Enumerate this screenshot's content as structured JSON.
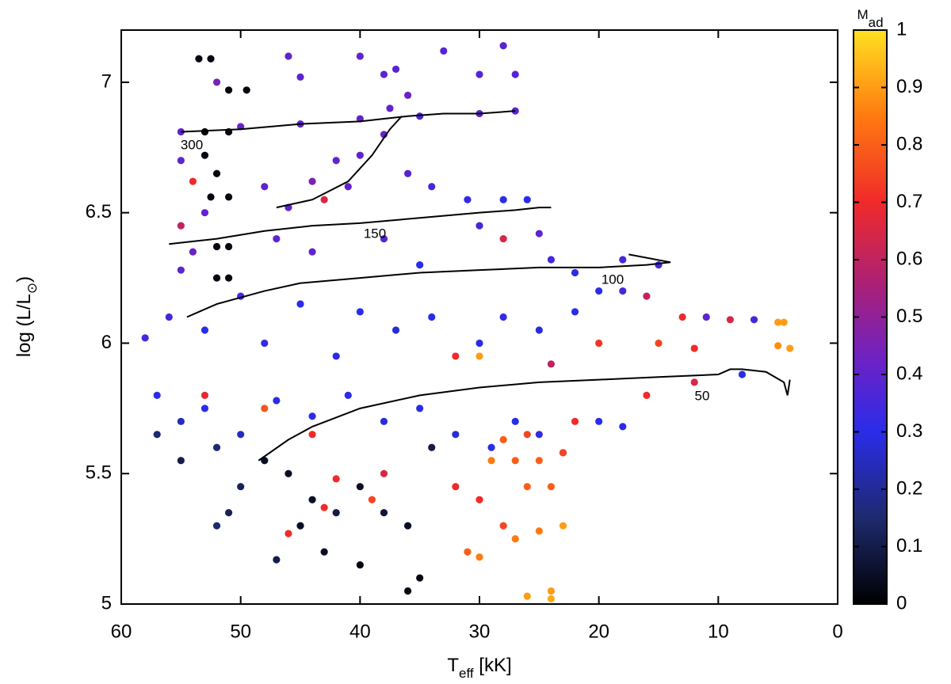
{
  "chart_data": {
    "type": "scatter",
    "xlabel": [
      "T",
      "eff",
      " [kK]"
    ],
    "ylabel": [
      "log (L/L",
      "⊙",
      ")"
    ],
    "clabel": [
      "M",
      "ad"
    ],
    "xlim": [
      60,
      0
    ],
    "xticks": [
      60,
      50,
      40,
      30,
      20,
      10,
      0
    ],
    "ylim": [
      5,
      7.2
    ],
    "yticks": [
      5,
      5.5,
      6,
      6.5,
      7
    ],
    "clim": [
      0,
      1
    ],
    "cticks": [
      0,
      0.1,
      0.2,
      0.3,
      0.4,
      0.5,
      0.6,
      0.7,
      0.8,
      0.9,
      1
    ],
    "colormap": [
      {
        "pos": 0,
        "color": "#000000"
      },
      {
        "pos": 0.15,
        "color": "#1e2a6e"
      },
      {
        "pos": 0.3,
        "color": "#2a2ce8"
      },
      {
        "pos": 0.42,
        "color": "#6a22c8"
      },
      {
        "pos": 0.55,
        "color": "#a8207a"
      },
      {
        "pos": 0.7,
        "color": "#f02a2a"
      },
      {
        "pos": 0.85,
        "color": "#ff7a10"
      },
      {
        "pos": 1,
        "color": "#ffe020"
      }
    ],
    "points": {
      "x": [
        55,
        50,
        45,
        40,
        35,
        30,
        27,
        52,
        45,
        38,
        30,
        27,
        46,
        40,
        33,
        28,
        53.5,
        52.5,
        51,
        49.5,
        53,
        51,
        53,
        52,
        51,
        52.5,
        52,
        51,
        52,
        51,
        55,
        54,
        53,
        55,
        54,
        55,
        48,
        46,
        44,
        42,
        40,
        38,
        43,
        41,
        36,
        34,
        31,
        28,
        26,
        30,
        28,
        25,
        47,
        44,
        38,
        35,
        24,
        22,
        18,
        15,
        37,
        36,
        37.5,
        58,
        56,
        53,
        50,
        48,
        45,
        42,
        40,
        37,
        34,
        32,
        30,
        28,
        25,
        22,
        20,
        18,
        16,
        13,
        11,
        9,
        7,
        5,
        4.5,
        5,
        4,
        12,
        15,
        20,
        24,
        30,
        57,
        55,
        53,
        50,
        47,
        44,
        41,
        38,
        35,
        32,
        29,
        27,
        25,
        23,
        20,
        18,
        16,
        12,
        8,
        57,
        55,
        52,
        50,
        48,
        46,
        44,
        42,
        40,
        38,
        36,
        34,
        45,
        43,
        40,
        47,
        36,
        35,
        51,
        52,
        30,
        28,
        26,
        24,
        29,
        27,
        25,
        23,
        31,
        30,
        27,
        25,
        23,
        24,
        24,
        26,
        28,
        26,
        22,
        32,
        38,
        42,
        46,
        43,
        39,
        44,
        48,
        53
      ],
      "y": [
        6.81,
        6.83,
        6.84,
        6.86,
        6.87,
        6.88,
        6.89,
        7.0,
        7.02,
        7.03,
        7.03,
        7.03,
        7.1,
        7.1,
        7.12,
        7.14,
        7.09,
        7.09,
        6.97,
        6.97,
        6.81,
        6.81,
        6.72,
        6.65,
        6.56,
        6.56,
        6.37,
        6.37,
        6.25,
        6.25,
        6.7,
        6.62,
        6.5,
        6.45,
        6.35,
        6.28,
        6.6,
        6.52,
        6.62,
        6.7,
        6.72,
        6.8,
        6.55,
        6.6,
        6.65,
        6.6,
        6.55,
        6.55,
        6.55,
        6.45,
        6.4,
        6.42,
        6.4,
        6.35,
        6.4,
        6.3,
        6.32,
        6.27,
        6.32,
        6.3,
        7.05,
        6.95,
        6.9,
        6.02,
        6.1,
        6.05,
        6.18,
        6.0,
        6.15,
        5.95,
        6.12,
        6.05,
        6.1,
        5.95,
        6.0,
        6.1,
        6.05,
        6.12,
        6.2,
        6.2,
        6.18,
        6.1,
        6.1,
        6.09,
        6.09,
        6.08,
        6.08,
        5.99,
        5.98,
        5.98,
        6.0,
        6.0,
        5.92,
        5.95,
        5.8,
        5.7,
        5.75,
        5.65,
        5.78,
        5.72,
        5.8,
        5.7,
        5.75,
        5.65,
        5.6,
        5.7,
        5.65,
        5.58,
        5.7,
        5.68,
        5.8,
        5.85,
        5.88,
        5.65,
        5.55,
        5.6,
        5.45,
        5.55,
        5.5,
        5.4,
        5.35,
        5.45,
        5.35,
        5.3,
        5.6,
        5.3,
        5.2,
        5.15,
        5.17,
        5.05,
        5.1,
        5.35,
        5.3,
        5.4,
        5.3,
        5.45,
        5.45,
        5.55,
        5.55,
        5.55,
        5.58,
        5.2,
        5.18,
        5.25,
        5.28,
        5.3,
        5.05,
        5.02,
        5.03,
        5.63,
        5.65,
        5.7,
        5.45,
        5.5,
        5.48,
        5.27,
        5.37,
        5.4,
        5.65,
        5.75,
        5.8
      ],
      "c": [
        0.4,
        0.42,
        0.4,
        0.4,
        0.38,
        0.4,
        0.38,
        0.45,
        0.4,
        0.4,
        0.38,
        0.38,
        0.4,
        0.4,
        0.38,
        0.38,
        0.02,
        0.02,
        0.02,
        0.02,
        0.02,
        0.02,
        0.02,
        0.02,
        0.02,
        0.02,
        0.02,
        0.02,
        0.02,
        0.02,
        0.4,
        0.7,
        0.4,
        0.6,
        0.42,
        0.4,
        0.4,
        0.4,
        0.45,
        0.4,
        0.4,
        0.42,
        0.65,
        0.4,
        0.38,
        0.35,
        0.32,
        0.3,
        0.3,
        0.35,
        0.65,
        0.4,
        0.4,
        0.4,
        0.38,
        0.3,
        0.35,
        0.3,
        0.35,
        0.35,
        0.38,
        0.42,
        0.4,
        0.35,
        0.35,
        0.3,
        0.35,
        0.32,
        0.3,
        0.3,
        0.3,
        0.28,
        0.3,
        0.7,
        0.3,
        0.32,
        0.28,
        0.3,
        0.3,
        0.35,
        0.6,
        0.7,
        0.4,
        0.65,
        0.35,
        0.9,
        0.9,
        0.88,
        0.9,
        0.7,
        0.75,
        0.72,
        0.6,
        0.9,
        0.3,
        0.25,
        0.3,
        0.25,
        0.3,
        0.3,
        0.3,
        0.28,
        0.3,
        0.28,
        0.3,
        0.3,
        0.32,
        0.3,
        0.3,
        0.3,
        0.7,
        0.65,
        0.3,
        0.15,
        0.1,
        0.15,
        0.12,
        0.05,
        0.05,
        0.05,
        0.1,
        0.05,
        0.08,
        0.05,
        0.1,
        0.05,
        0.05,
        0.02,
        0.1,
        0.02,
        0.02,
        0.12,
        0.15,
        0.7,
        0.75,
        0.8,
        0.8,
        0.85,
        0.8,
        0.8,
        0.75,
        0.8,
        0.85,
        0.85,
        0.85,
        0.9,
        0.9,
        0.92,
        0.9,
        0.8,
        0.75,
        0.7,
        0.7,
        0.65,
        0.7,
        0.7,
        0.7,
        0.75,
        0.7,
        0.78,
        0.68
      ]
    },
    "tracks": [
      {
        "label": "300",
        "x": [
          55,
          50,
          45,
          40,
          38,
          36,
          33,
          30,
          27
        ],
        "y": [
          6.81,
          6.82,
          6.84,
          6.85,
          6.86,
          6.87,
          6.88,
          6.88,
          6.89
        ]
      },
      {
        "x": [
          47,
          44,
          41,
          39,
          37.5,
          36.5
        ],
        "y": [
          6.52,
          6.55,
          6.62,
          6.72,
          6.82,
          6.87
        ]
      },
      {
        "label": "150",
        "x": [
          56,
          52,
          48,
          44,
          40,
          35,
          30,
          27,
          25,
          24
        ],
        "y": [
          6.38,
          6.4,
          6.43,
          6.45,
          6.46,
          6.48,
          6.5,
          6.51,
          6.52,
          6.52
        ]
      },
      {
        "label": "100",
        "x": [
          54.5,
          52,
          48,
          45,
          40,
          35,
          30,
          25,
          20,
          16,
          14,
          17.5
        ],
        "y": [
          6.1,
          6.15,
          6.2,
          6.23,
          6.25,
          6.27,
          6.28,
          6.29,
          6.29,
          6.3,
          6.31,
          6.34
        ]
      },
      {
        "label": "50",
        "x": [
          48.5,
          46,
          44,
          40,
          35,
          30,
          25,
          20,
          15,
          10,
          9,
          8,
          6,
          4.5,
          4.2,
          4
        ],
        "y": [
          5.55,
          5.63,
          5.68,
          5.75,
          5.8,
          5.83,
          5.85,
          5.86,
          5.87,
          5.88,
          5.9,
          5.9,
          5.89,
          5.85,
          5.8,
          5.86
        ]
      }
    ]
  }
}
